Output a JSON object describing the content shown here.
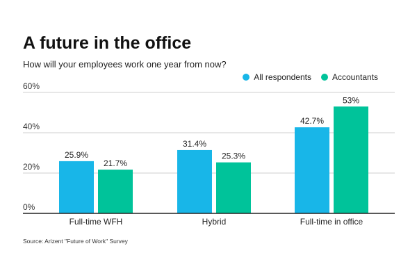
{
  "title": "A future in the office",
  "subtitle": "How will your employees work one year from now?",
  "source": "Source: Arizent \"Future of Work\" Survey",
  "colors": {
    "all": "#18b6e8",
    "accountants": "#00c39a",
    "grid": "#cfcfcf",
    "axis": "#222222"
  },
  "chart_data": {
    "type": "bar",
    "title": "A future in the office",
    "subtitle": "How will your employees work one year from now?",
    "categories": [
      "Full-time WFH",
      "Hybrid",
      "Full-time in office"
    ],
    "series": [
      {
        "name": "All respondents",
        "values": [
          25.9,
          31.4,
          42.7
        ],
        "labels": [
          "25.9%",
          "31.4%",
          "42.7%"
        ]
      },
      {
        "name": "Accountants",
        "values": [
          21.7,
          25.3,
          53
        ],
        "labels": [
          "21.7%",
          "25.3%",
          "53%"
        ]
      }
    ],
    "yticks": [
      "0%",
      "20%",
      "40%",
      "60%"
    ],
    "ylim": [
      0,
      60
    ],
    "grid": true,
    "legend": "top-right",
    "xlabel": "",
    "ylabel": ""
  }
}
